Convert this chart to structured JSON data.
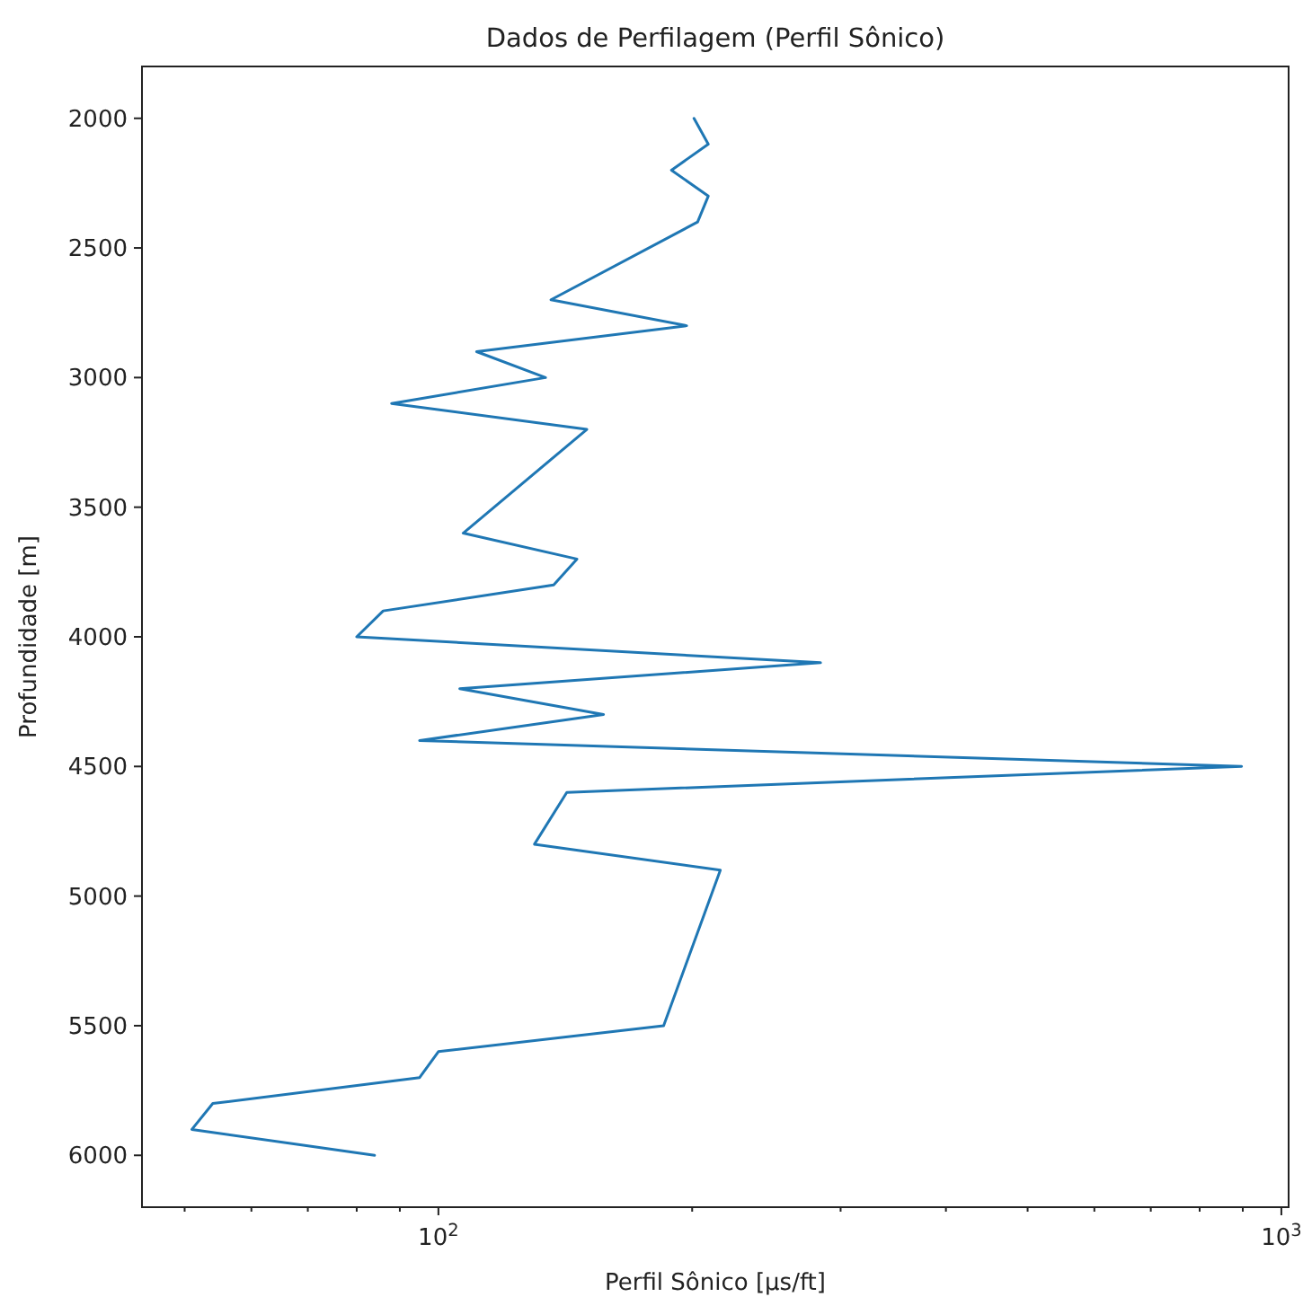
{
  "chart_data": {
    "type": "line",
    "title": "Dados de Perfilagem (Perfil Sônico)",
    "xlabel": "Perfil Sônico [µs/ft]",
    "ylabel": "Profundidade [m]",
    "log": "x",
    "xlim": [
      44.5,
      1020
    ],
    "xticks": [
      {
        "value": 50,
        "label": null
      },
      {
        "value": 60,
        "label": null
      },
      {
        "value": 70,
        "label": null
      },
      {
        "value": 80,
        "label": null
      },
      {
        "value": 90,
        "label": null
      },
      {
        "value": 100,
        "label": "10$^{2}$"
      },
      {
        "value": 200,
        "label": null
      },
      {
        "value": 300,
        "label": null
      },
      {
        "value": 400,
        "label": null
      },
      {
        "value": 500,
        "label": null
      },
      {
        "value": 600,
        "label": null
      },
      {
        "value": 700,
        "label": null
      },
      {
        "value": 800,
        "label": null
      },
      {
        "value": 900,
        "label": null
      },
      {
        "value": 1000,
        "label": "10$^{3}$"
      }
    ],
    "ylim": [
      6200,
      1800
    ],
    "yticks": [
      2000,
      2500,
      3000,
      3500,
      4000,
      4500,
      5000,
      5500,
      6000
    ],
    "grid": false,
    "marker": "none",
    "line_style": "solid",
    "series": [
      {
        "color": "#1f77b4",
        "x": [
          201,
          209,
          189,
          209,
          203,
          136,
          197,
          111,
          134,
          88,
          150,
          107,
          146,
          137,
          86,
          80,
          284,
          106,
          157,
          95,
          897,
          142,
          130,
          216,
          185,
          100,
          95,
          54,
          51,
          84
        ],
        "values": [
          2000,
          2100,
          2200,
          2300,
          2400,
          2700,
          2800,
          2900,
          3000,
          3100,
          3200,
          3600,
          3700,
          3800,
          3900,
          4000,
          4100,
          4200,
          4300,
          4400,
          4500,
          4600,
          4800,
          4900,
          5500,
          5600,
          5700,
          5800,
          5900,
          6000
        ]
      }
    ]
  }
}
